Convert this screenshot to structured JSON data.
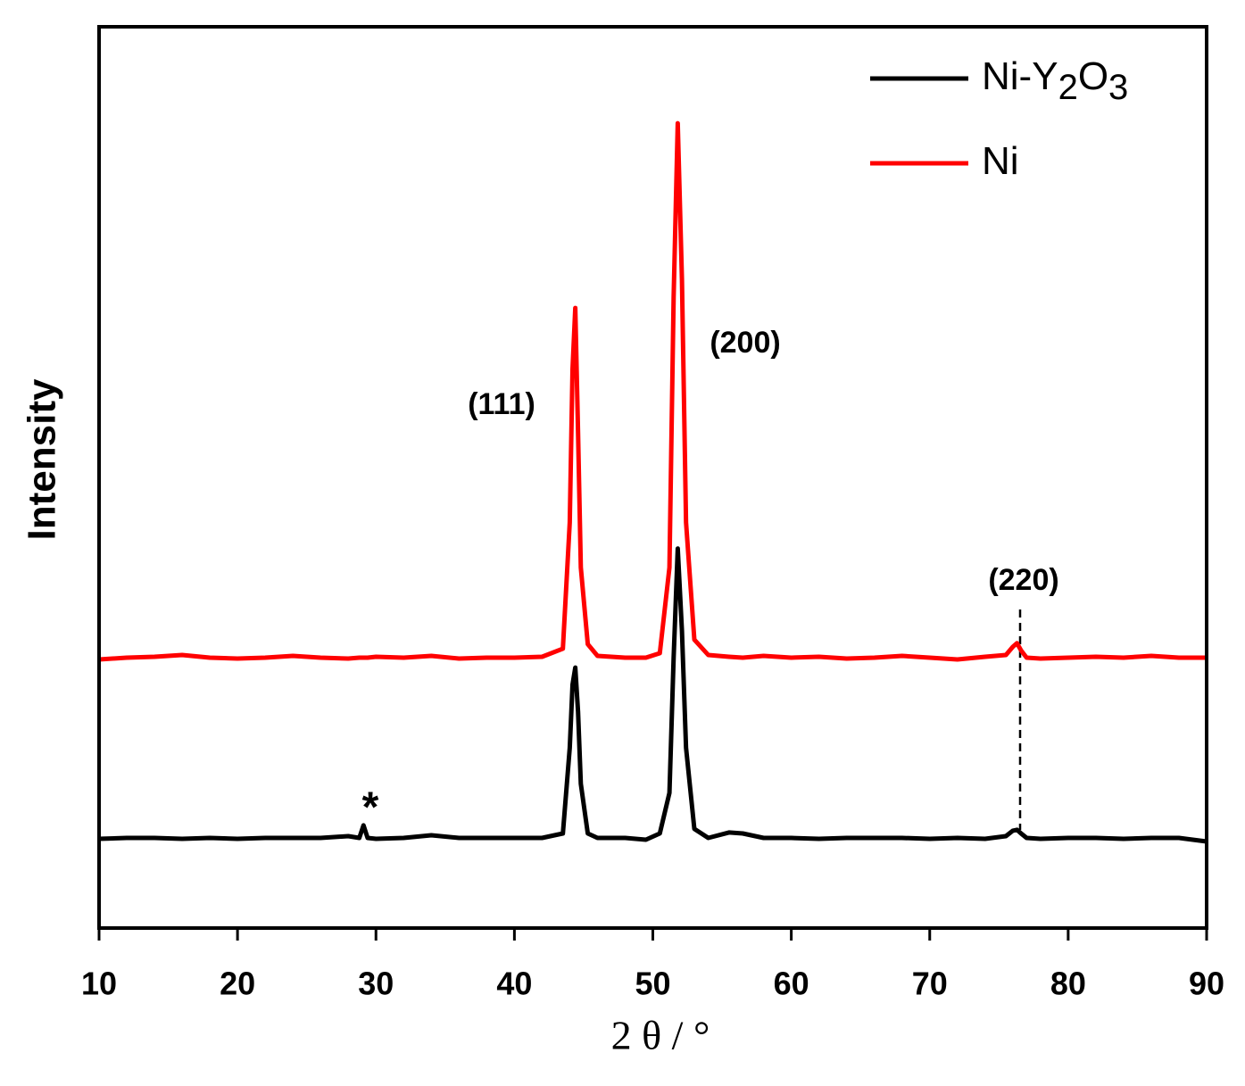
{
  "chart_data": {
    "type": "line",
    "x_label": "2 θ / °",
    "y_label": "Intensity",
    "x": [
      10,
      12,
      14,
      16,
      18,
      20,
      22,
      24,
      26,
      28,
      28.8,
      29.1,
      29.4,
      30,
      32,
      34,
      36,
      38,
      40,
      42,
      43.5,
      44,
      44.2,
      44.4,
      44.6,
      44.8,
      45.3,
      46,
      48,
      49.5,
      50.5,
      51.2,
      51.5,
      51.8,
      52.1,
      52.4,
      53,
      54,
      55.5,
      56.5,
      58,
      60,
      62,
      64,
      66,
      68,
      70,
      72,
      74,
      75.5,
      76,
      76.3,
      76.6,
      77,
      78,
      80,
      82,
      84,
      86,
      88,
      90
    ],
    "series": [
      {
        "name": "Ni-Y2O3",
        "color": "#000000",
        "values": [
          9.9,
          10.0,
          10.0,
          9.9,
          10.0,
          9.9,
          10.0,
          10.0,
          10.0,
          10.2,
          10.0,
          11.4,
          10.0,
          9.9,
          10.0,
          10.3,
          10.0,
          10.0,
          10.0,
          10.0,
          10.5,
          20,
          27,
          28.9,
          24,
          16,
          10.5,
          10.0,
          10.0,
          9.8,
          10.5,
          15,
          30,
          42.1,
          33,
          20,
          11,
          10.0,
          10.6,
          10.5,
          10.0,
          10,
          9.9,
          10,
          10,
          10,
          9.9,
          10,
          9.9,
          10.2,
          10.8,
          10.9,
          10.5,
          10.0,
          9.9,
          10,
          10,
          9.9,
          10,
          10,
          9.6
        ]
      },
      {
        "name": "Ni",
        "color": "#ff0000",
        "values": [
          29.8,
          30.0,
          30.1,
          30.3,
          30.0,
          29.9,
          30.0,
          30.2,
          30.0,
          29.9,
          30.0,
          30.0,
          30.0,
          30.1,
          30.0,
          30.2,
          29.9,
          30.0,
          30.0,
          30.1,
          31,
          45,
          62,
          68.8,
          55,
          40,
          31.5,
          30.2,
          30.0,
          30.0,
          30.5,
          40,
          70,
          89.3,
          72,
          45,
          32,
          30.3,
          30.1,
          30.0,
          30.2,
          30.0,
          30.1,
          29.9,
          30.0,
          30.2,
          30.0,
          29.8,
          30.1,
          30.3,
          31.2,
          31.6,
          30.8,
          30.0,
          29.9,
          30.0,
          30.1,
          30.0,
          30.2,
          30.0,
          30.0
        ]
      }
    ],
    "annotations": [
      "(111)",
      "(200)",
      "(220)",
      "*"
    ],
    "xlim": [
      10,
      90
    ],
    "xticks": [
      10,
      20,
      30,
      40,
      50,
      60,
      70,
      80,
      90
    ],
    "ylim": [
      0,
      100
    ],
    "legend": "upper right"
  }
}
